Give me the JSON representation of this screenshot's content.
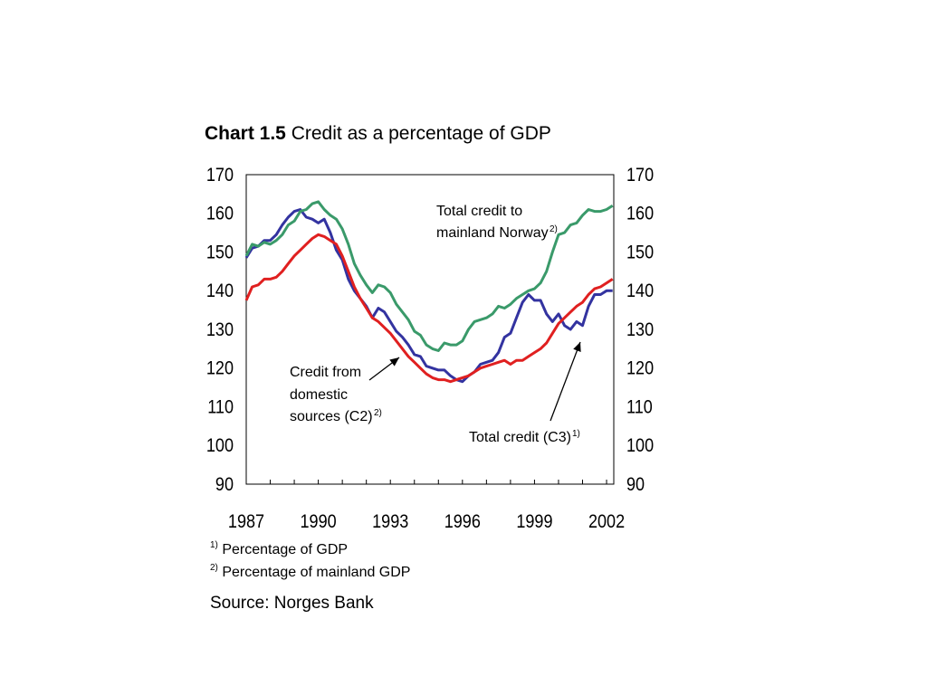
{
  "title_bold": "Chart 1.5",
  "title_rest": "Credit as a percentage of GDP",
  "footnotes": [
    {
      "mark": "1)",
      "text": "Percentage of GDP"
    },
    {
      "mark": "2)",
      "text": "Percentage of mainland GDP"
    }
  ],
  "source": "Source: Norges Bank",
  "chart_data": {
    "type": "line",
    "title": "Credit as a percentage of GDP",
    "xlim": [
      1987,
      2002.3
    ],
    "ylim": [
      90,
      170
    ],
    "y_ticks": [
      90,
      100,
      110,
      120,
      130,
      140,
      150,
      160,
      170
    ],
    "x_tick_labels": [
      "1987",
      "1990",
      "1993",
      "1996",
      "1999",
      "2002"
    ],
    "x_tick_values": [
      1987,
      1990,
      1993,
      1996,
      1999,
      2002
    ],
    "y_axis_right": true,
    "grid": false,
    "series": [
      {
        "key": "c3",
        "color": "#3333a0",
        "annotation": [
          "Total credit (C3)",
          "1)"
        ],
        "points": [
          [
            1987,
            148.5
          ],
          [
            1987.25,
            151
          ],
          [
            1987.5,
            151.5
          ],
          [
            1987.75,
            153
          ],
          [
            1988,
            153
          ],
          [
            1988.25,
            154.5
          ],
          [
            1988.5,
            157
          ],
          [
            1988.75,
            159
          ],
          [
            1989,
            160.5
          ],
          [
            1989.25,
            161
          ],
          [
            1989.5,
            159
          ],
          [
            1989.75,
            158.5
          ],
          [
            1990,
            157.5
          ],
          [
            1990.25,
            158.5
          ],
          [
            1990.5,
            155
          ],
          [
            1990.75,
            150.5
          ],
          [
            1991,
            148
          ],
          [
            1991.25,
            143
          ],
          [
            1991.5,
            140
          ],
          [
            1991.75,
            138
          ],
          [
            1992,
            136
          ],
          [
            1992.25,
            133
          ],
          [
            1992.5,
            135.5
          ],
          [
            1992.75,
            134.5
          ],
          [
            1993,
            132
          ],
          [
            1993.25,
            129.5
          ],
          [
            1993.5,
            128
          ],
          [
            1993.75,
            126
          ],
          [
            1994,
            123.5
          ],
          [
            1994.25,
            123
          ],
          [
            1994.5,
            120.5
          ],
          [
            1994.75,
            120
          ],
          [
            1995,
            119.5
          ],
          [
            1995.25,
            119.5
          ],
          [
            1995.5,
            118
          ],
          [
            1995.75,
            117
          ],
          [
            1996,
            116.5
          ],
          [
            1996.25,
            118
          ],
          [
            1996.5,
            119
          ],
          [
            1996.75,
            121
          ],
          [
            1997,
            121.5
          ],
          [
            1997.25,
            122
          ],
          [
            1997.5,
            124
          ],
          [
            1997.75,
            128
          ],
          [
            1998,
            129
          ],
          [
            1998.25,
            133
          ],
          [
            1998.5,
            137
          ],
          [
            1998.75,
            139
          ],
          [
            1999,
            137.5
          ],
          [
            1999.25,
            137.5
          ],
          [
            1999.5,
            134
          ],
          [
            1999.75,
            132
          ],
          [
            2000,
            134
          ],
          [
            2000.25,
            131
          ],
          [
            2000.5,
            130
          ],
          [
            2000.75,
            132
          ],
          [
            2001,
            131
          ],
          [
            2001.25,
            136
          ],
          [
            2001.5,
            139
          ],
          [
            2001.75,
            139
          ],
          [
            2002,
            140
          ],
          [
            2002.25,
            140
          ]
        ]
      },
      {
        "key": "c2",
        "color": "#e02020",
        "annotation": [
          "Credit from",
          "domestic",
          "sources (C2)",
          "2)"
        ],
        "points": [
          [
            1987,
            137.5
          ],
          [
            1987.25,
            141
          ],
          [
            1987.5,
            141.5
          ],
          [
            1987.75,
            143
          ],
          [
            1988,
            143
          ],
          [
            1988.25,
            143.5
          ],
          [
            1988.5,
            145
          ],
          [
            1988.75,
            147
          ],
          [
            1989,
            149
          ],
          [
            1989.25,
            150.5
          ],
          [
            1989.5,
            152
          ],
          [
            1989.75,
            153.5
          ],
          [
            1990,
            154.5
          ],
          [
            1990.25,
            154
          ],
          [
            1990.5,
            153
          ],
          [
            1990.75,
            152
          ],
          [
            1991,
            149
          ],
          [
            1991.25,
            145
          ],
          [
            1991.5,
            141
          ],
          [
            1991.75,
            138
          ],
          [
            1992,
            135.5
          ],
          [
            1992.25,
            133
          ],
          [
            1992.5,
            132
          ],
          [
            1992.75,
            130.5
          ],
          [
            1993,
            129
          ],
          [
            1993.25,
            127
          ],
          [
            1993.5,
            125
          ],
          [
            1993.75,
            123
          ],
          [
            1994,
            121.5
          ],
          [
            1994.25,
            120
          ],
          [
            1994.5,
            118.5
          ],
          [
            1994.75,
            117.5
          ],
          [
            1995,
            117
          ],
          [
            1995.25,
            117
          ],
          [
            1995.5,
            116.5
          ],
          [
            1995.75,
            117
          ],
          [
            1996,
            117.5
          ],
          [
            1996.25,
            118
          ],
          [
            1996.5,
            119
          ],
          [
            1996.75,
            120
          ],
          [
            1997,
            120.5
          ],
          [
            1997.25,
            121
          ],
          [
            1997.5,
            121.5
          ],
          [
            1997.75,
            122
          ],
          [
            1998,
            121
          ],
          [
            1998.25,
            122
          ],
          [
            1998.5,
            122
          ],
          [
            1998.75,
            123
          ],
          [
            1999,
            124
          ],
          [
            1999.25,
            125
          ],
          [
            1999.5,
            126.5
          ],
          [
            1999.75,
            129
          ],
          [
            2000,
            131.5
          ],
          [
            2000.25,
            133
          ],
          [
            2000.5,
            134.5
          ],
          [
            2000.75,
            136
          ],
          [
            2001,
            137
          ],
          [
            2001.25,
            139
          ],
          [
            2001.5,
            140.5
          ],
          [
            2001.75,
            141
          ],
          [
            2002,
            142
          ],
          [
            2002.25,
            143
          ]
        ]
      },
      {
        "key": "mainland",
        "color": "#3a9a6a",
        "annotation": [
          "Total credit to",
          "mainland Norway",
          "2)"
        ],
        "points": [
          [
            1987,
            149
          ],
          [
            1987.25,
            152
          ],
          [
            1987.5,
            151.5
          ],
          [
            1987.75,
            152.5
          ],
          [
            1988,
            152
          ],
          [
            1988.25,
            153
          ],
          [
            1988.5,
            154.5
          ],
          [
            1988.75,
            157
          ],
          [
            1989,
            158
          ],
          [
            1989.25,
            160.5
          ],
          [
            1989.5,
            161
          ],
          [
            1989.75,
            162.5
          ],
          [
            1990,
            163
          ],
          [
            1990.25,
            161
          ],
          [
            1990.5,
            159.5
          ],
          [
            1990.75,
            158.5
          ],
          [
            1991,
            156
          ],
          [
            1991.25,
            152
          ],
          [
            1991.5,
            147
          ],
          [
            1991.75,
            144
          ],
          [
            1992,
            141.5
          ],
          [
            1992.25,
            139.5
          ],
          [
            1992.5,
            141.5
          ],
          [
            1992.75,
            141
          ],
          [
            1993,
            139.5
          ],
          [
            1993.25,
            136.5
          ],
          [
            1993.5,
            134.5
          ],
          [
            1993.75,
            132.5
          ],
          [
            1994,
            129.5
          ],
          [
            1994.25,
            128.5
          ],
          [
            1994.5,
            126
          ],
          [
            1994.75,
            125
          ],
          [
            1995,
            124.5
          ],
          [
            1995.25,
            126.5
          ],
          [
            1995.5,
            126
          ],
          [
            1995.75,
            126
          ],
          [
            1996,
            127
          ],
          [
            1996.25,
            130
          ],
          [
            1996.5,
            132
          ],
          [
            1996.75,
            132.5
          ],
          [
            1997,
            133
          ],
          [
            1997.25,
            134
          ],
          [
            1997.5,
            136
          ],
          [
            1997.75,
            135.5
          ],
          [
            1998,
            136.5
          ],
          [
            1998.25,
            138
          ],
          [
            1998.5,
            139
          ],
          [
            1998.75,
            140
          ],
          [
            1999,
            140.5
          ],
          [
            1999.25,
            142
          ],
          [
            1999.5,
            145
          ],
          [
            1999.75,
            150
          ],
          [
            2000,
            154.5
          ],
          [
            2000.25,
            155
          ],
          [
            2000.5,
            157
          ],
          [
            2000.75,
            157.5
          ],
          [
            2001,
            159.5
          ],
          [
            2001.25,
            161
          ],
          [
            2001.5,
            160.5
          ],
          [
            2001.75,
            160.5
          ],
          [
            2002,
            161
          ],
          [
            2002.25,
            162
          ]
        ]
      }
    ]
  }
}
